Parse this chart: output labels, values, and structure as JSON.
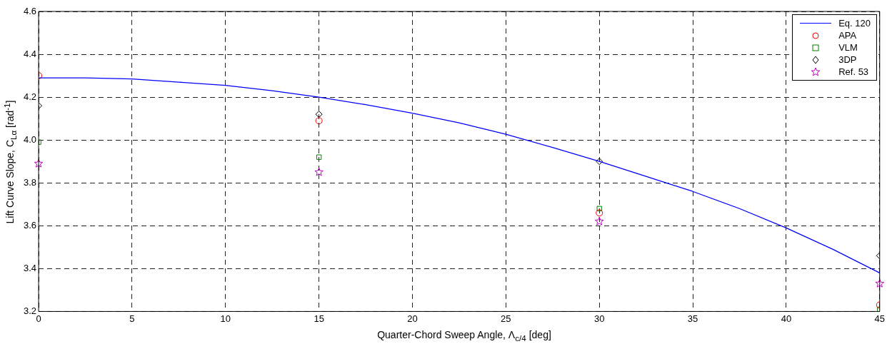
{
  "chart_data": {
    "type": "line",
    "xlabel": "Quarter-Chord Sweep Angle, Λ$_{c/4}$ [deg]",
    "ylabel": "Lift Curve Slope, C$_{Lα}$ [rad$^{-1}$]",
    "xlim": [
      0,
      45
    ],
    "xticks": [
      0,
      5,
      10,
      15,
      20,
      25,
      30,
      35,
      40,
      45
    ],
    "ylim": [
      3.2,
      4.6
    ],
    "yticks": [
      3.2,
      3.4,
      3.6,
      3.8,
      {
        "value": 4,
        "label": "4.0"
      },
      4.2,
      4.4,
      4.6
    ],
    "grid": true,
    "legend": "top right",
    "series": [
      {
        "name": "Eq. 120",
        "color": "#0000ff",
        "marker": "none",
        "x": [
          0,
          2.5,
          5,
          7.5,
          10,
          12.5,
          15,
          17.5,
          20,
          22.5,
          25,
          27.5,
          30,
          32.5,
          35,
          37.5,
          40,
          42.5,
          45
        ],
        "values": [
          4.29,
          4.29,
          4.285,
          4.27,
          4.255,
          4.23,
          4.2,
          4.165,
          4.125,
          4.08,
          4.027,
          3.965,
          3.9,
          3.83,
          3.76,
          3.68,
          3.59,
          3.49,
          3.38
        ]
      },
      {
        "name": "APA",
        "type": "scatter",
        "color": "#ff0000",
        "marker": "circle",
        "x": [
          0,
          15,
          30,
          45
        ],
        "values": [
          4.3,
          4.09,
          3.66,
          3.23
        ]
      },
      {
        "name": "VLM",
        "type": "scatter",
        "color": "#008000",
        "marker": "square",
        "x": [
          0,
          15,
          30,
          45
        ],
        "values": [
          3.99,
          3.92,
          3.68,
          3.21
        ]
      },
      {
        "name": "3DP",
        "type": "scatter",
        "color": "#000000",
        "marker": "diamond",
        "x": [
          0,
          15,
          30,
          45
        ],
        "values": [
          4.16,
          4.12,
          3.9,
          3.46
        ]
      },
      {
        "name": "Ref. 53",
        "type": "scatter",
        "color": "#bf00bf",
        "marker": "star",
        "x": [
          0,
          15,
          30,
          45
        ],
        "values": [
          3.89,
          3.85,
          3.62,
          3.33
        ]
      }
    ]
  }
}
